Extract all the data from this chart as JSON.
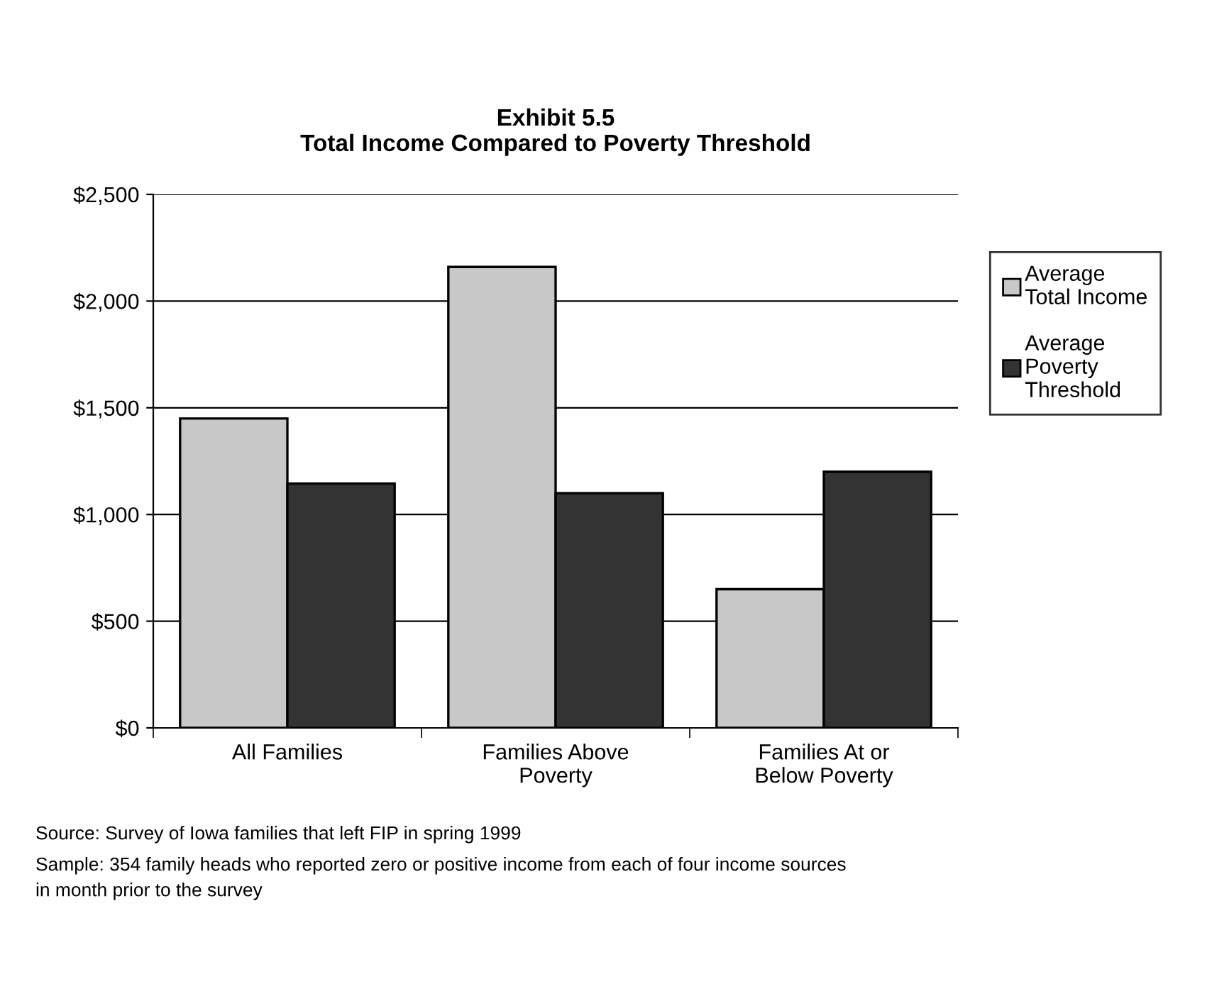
{
  "chart_data": {
    "type": "bar",
    "title": "Exhibit 5.5\nTotal Income Compared to Poverty Threshold",
    "categories": [
      "All Families",
      "Families Above\nPoverty",
      "Families At or\nBelow Poverty"
    ],
    "series": [
      {
        "name": "Average\nTotal Income",
        "color": "#c8c8c8",
        "values": [
          1450,
          2160,
          650
        ]
      },
      {
        "name": "Average\nPoverty\nThreshold",
        "color": "#333333",
        "values": [
          1145,
          1100,
          1200
        ]
      }
    ],
    "ylim": [
      0,
      2500
    ],
    "yticks": [
      {
        "value": 0,
        "label": "$0"
      },
      {
        "value": 500,
        "label": "$500"
      },
      {
        "value": 1000,
        "label": "$1,000"
      },
      {
        "value": 1500,
        "label": "$1,500"
      },
      {
        "value": 2000,
        "label": "$2,000"
      },
      {
        "value": 2500,
        "label": "$2,500"
      }
    ],
    "grid": "y",
    "legend": "right",
    "annotations": [
      "Source: Survey of Iowa families that left FIP in spring 1999",
      "Sample: 354 family heads who reported zero or positive income from each of four income sources\nin month prior to the survey"
    ]
  }
}
